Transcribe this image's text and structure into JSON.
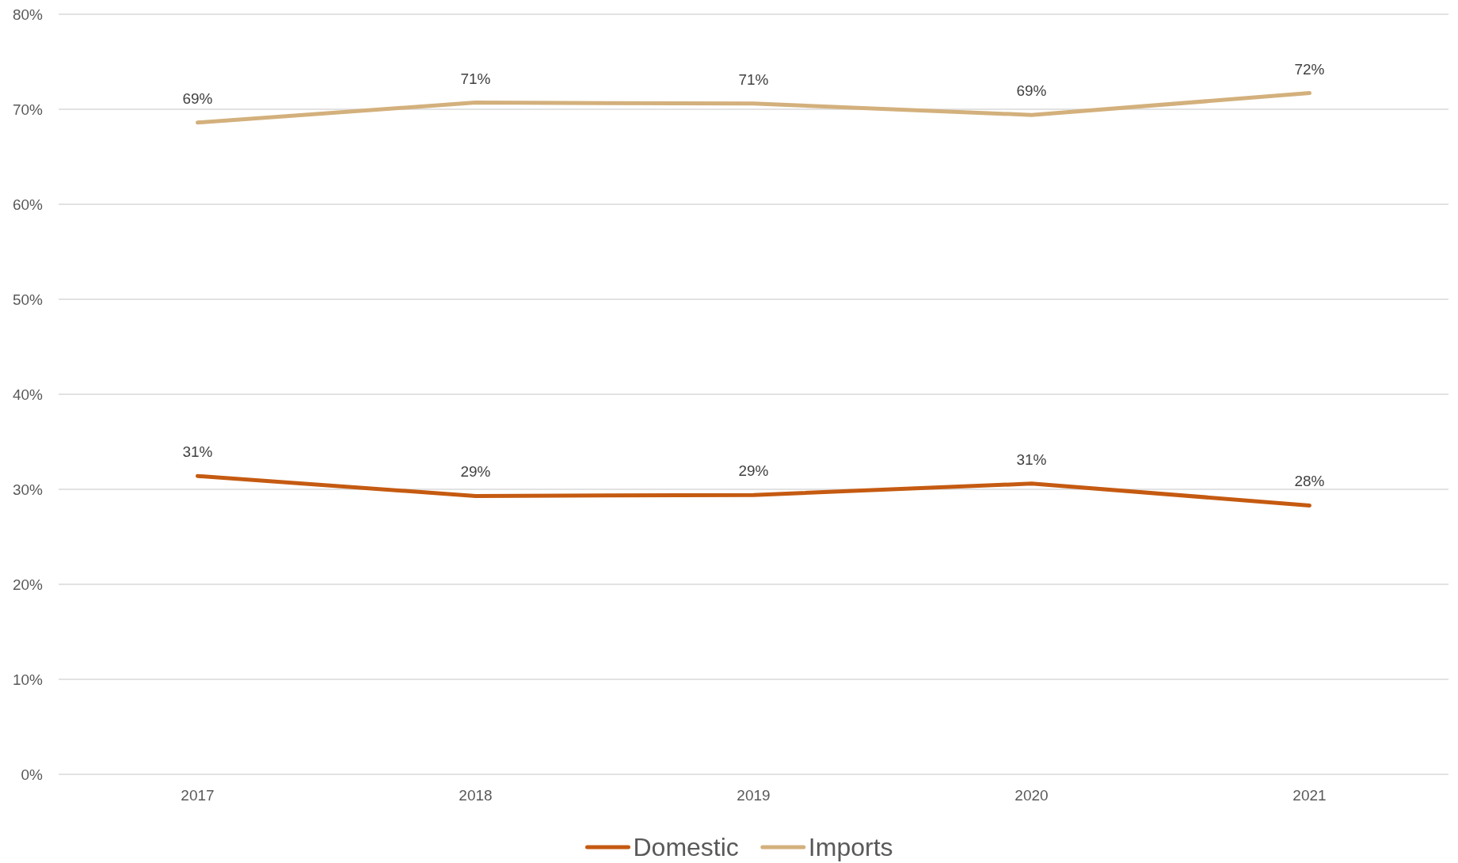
{
  "chart_data": {
    "type": "line",
    "categories": [
      "2017",
      "2018",
      "2019",
      "2020",
      "2021"
    ],
    "series": [
      {
        "name": "Domestic",
        "color": "#c55a11",
        "values": [
          31.4,
          29.3,
          29.4,
          30.6,
          28.3
        ],
        "value_labels": [
          "31%",
          "29%",
          "29%",
          "31%",
          "28%"
        ]
      },
      {
        "name": "Imports",
        "color": "#d3b07c",
        "values": [
          68.6,
          70.7,
          70.6,
          69.4,
          71.7
        ],
        "value_labels": [
          "69%",
          "71%",
          "71%",
          "69%",
          "72%"
        ]
      }
    ],
    "ylim": [
      0,
      80
    ],
    "yticks": [
      {
        "value": 0,
        "label": "0%"
      },
      {
        "value": 10,
        "label": "10%"
      },
      {
        "value": 20,
        "label": "20%"
      },
      {
        "value": 30,
        "label": "30%"
      },
      {
        "value": 40,
        "label": "40%"
      },
      {
        "value": 50,
        "label": "50%"
      },
      {
        "value": 60,
        "label": "60%"
      },
      {
        "value": 70,
        "label": "70%"
      },
      {
        "value": 80,
        "label": "80%"
      }
    ],
    "grid": "y",
    "legend": "bottom",
    "marker": "none",
    "line_style": "solid"
  }
}
